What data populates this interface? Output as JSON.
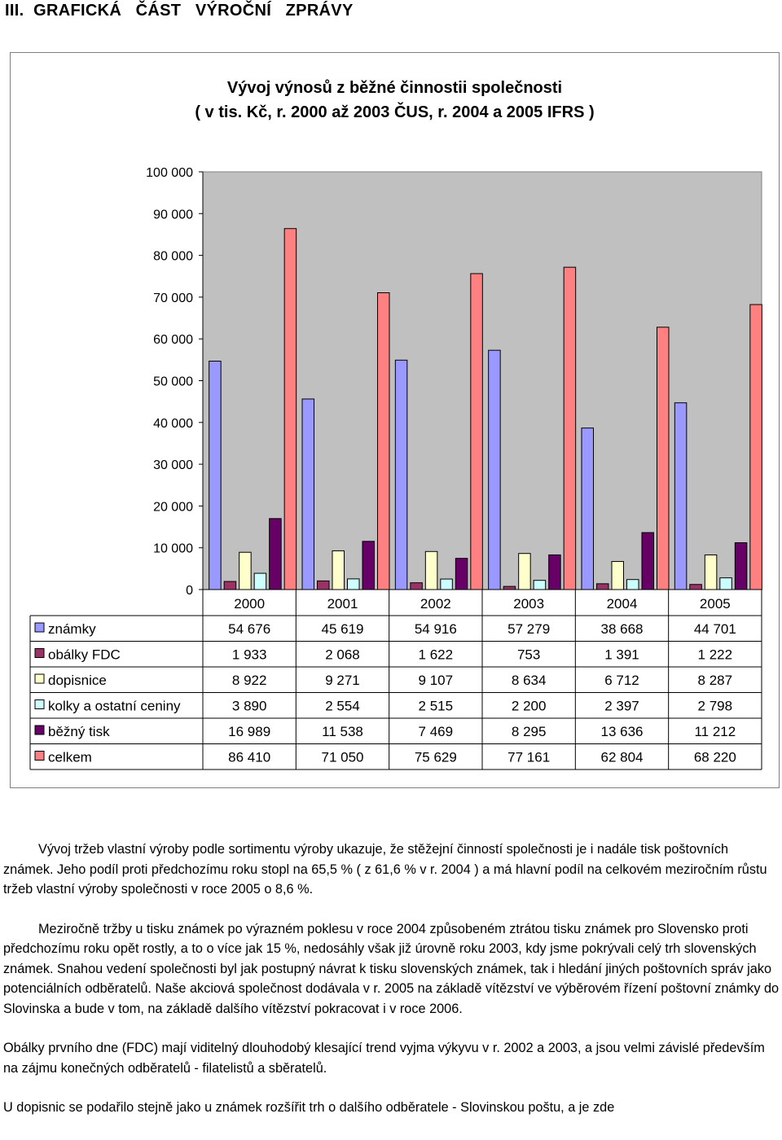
{
  "page": {
    "heading": "III.  GRAFICKÁ   ČÁST   VÝROČNÍ   ZPRÁVY"
  },
  "chart_data": {
    "type": "bar",
    "title": "Vývoj výnosů z běžné činnostii společnosti",
    "subtitle": "( v tis. Kč, r. 2000 až 2003 ČUS, r. 2004 a 2005 IFRS )",
    "xlabel": "",
    "ylabel": "",
    "ylim": [
      0,
      100000
    ],
    "yticks": [
      0,
      10000,
      20000,
      30000,
      40000,
      50000,
      60000,
      70000,
      80000,
      90000,
      100000
    ],
    "ytick_labels": [
      "0",
      "10 000",
      "20 000",
      "30 000",
      "40 000",
      "50 000",
      "60 000",
      "70 000",
      "80 000",
      "90 000",
      "100 000"
    ],
    "categories": [
      "2000",
      "2001",
      "2002",
      "2003",
      "2004",
      "2005"
    ],
    "grid": false,
    "legend": "data table below chart",
    "series": [
      {
        "name": "známky",
        "color": "#9999ff",
        "values": [
          54676,
          45619,
          54916,
          57279,
          38668,
          44701
        ],
        "labels": [
          "54 676",
          "45 619",
          "54 916",
          "57 279",
          "38 668",
          "44 701"
        ]
      },
      {
        "name": "obálky FDC",
        "color": "#993366",
        "values": [
          1933,
          2068,
          1622,
          753,
          1391,
          1222
        ],
        "labels": [
          "1 933",
          "2 068",
          "1 622",
          "753",
          "1 391",
          "1 222"
        ]
      },
      {
        "name": "dopisnice",
        "color": "#ffffcc",
        "values": [
          8922,
          9271,
          9107,
          8634,
          6712,
          8287
        ],
        "labels": [
          "8 922",
          "9 271",
          "9 107",
          "8 634",
          "6 712",
          "8 287"
        ]
      },
      {
        "name": "kolky a ostatní ceniny",
        "color": "#ccffff",
        "values": [
          3890,
          2554,
          2515,
          2200,
          2397,
          2798
        ],
        "labels": [
          "3 890",
          "2 554",
          "2 515",
          "2 200",
          "2 397",
          "2 798"
        ]
      },
      {
        "name": "běžný  tisk",
        "color": "#660066",
        "values": [
          16989,
          11538,
          7469,
          8295,
          13636,
          11212
        ],
        "labels": [
          "16 989",
          "11 538",
          "7 469",
          "8 295",
          "13 636",
          "11 212"
        ]
      },
      {
        "name": "celkem",
        "color": "#ff8080",
        "values": [
          86410,
          71050,
          75629,
          77161,
          62804,
          68220
        ],
        "labels": [
          "86 410",
          "71 050",
          "75 629",
          "77 161",
          "62 804",
          "68 220"
        ]
      }
    ]
  },
  "text": {
    "p1": "Vývoj tržeb vlastní výroby podle sortimentu výroby ukazuje, že stěžejní činností společnosti je i nadále tisk poštovních známek. Jeho podíl proti předchozímu roku stopl na 65,5 % ( z 61,6 % v r. 2004 ) a má hlavní podíl na celkovém meziročním růstu tržeb vlastní výroby společnosti v roce 2005 o 8,6 %.",
    "p2": "Meziročně tržby u tisku známek po výrazném poklesu v roce 2004 způsobeném ztrátou tisku známek pro Slovensko proti předchozímu roku opět rostly, a to o více jak 15 %, nedosáhly však již úrovně roku 2003, kdy jsme pokrývali celý trh slovenských známek. Snahou vedení společnosti byl jak postupný návrat k tisku slovenských známek, tak i hledání jiných poštovních správ jako potenciálních odběratelů. Naše akciová společnost dodávala v r. 2005 na základě vítězství ve výběrovém řízení poštovní známky do Slovinska a bude v tom, na základě dalšího vítězství pokracovat i v roce 2006.",
    "p3": "Obálky prvního dne (FDC) mají viditelný dlouhodobý klesající trend vyjma výkyvu v r. 2002 a 2003, a jsou velmi závislé především na zájmu konečných odběratelů - filatelistů a sběratelů.",
    "p4": "U dopisnic se podařilo stejně jako u známek rozšířit trh o dalšího odběratele - Slovinskou poštu, a je zde"
  }
}
